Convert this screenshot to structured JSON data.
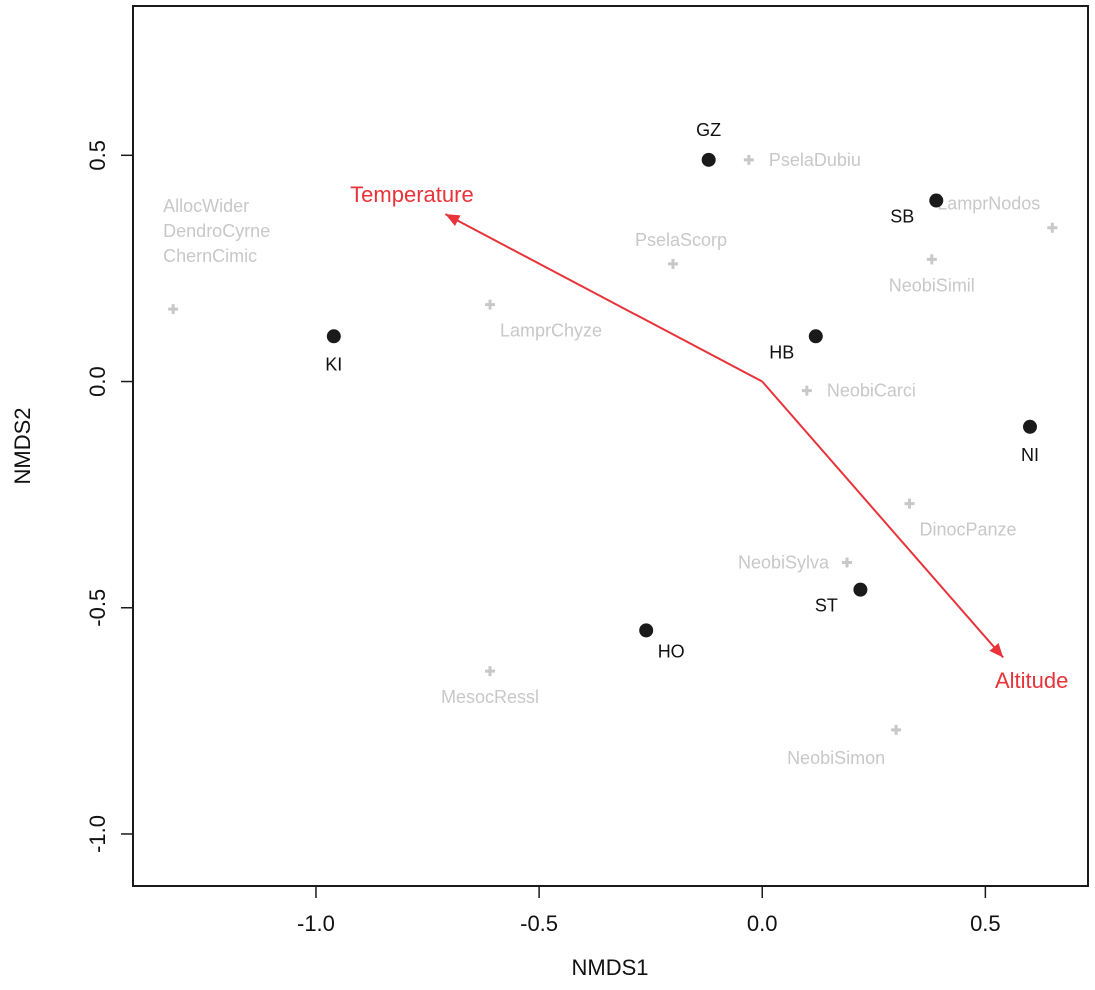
{
  "chart_data": {
    "type": "scatter",
    "title": "",
    "xlabel": "NMDS1",
    "ylabel": "NMDS2",
    "xlim": [
      -1.41,
      0.73
    ],
    "ylim": [
      -1.115,
      0.83
    ],
    "x_ticks": [
      "-1.0",
      "-0.5",
      "0.0",
      "0.5"
    ],
    "x_tick_values": [
      -1.0,
      -0.5,
      0.0,
      0.5
    ],
    "y_ticks": [
      "-1.0",
      "-0.5",
      "0.0",
      "0.5"
    ],
    "y_tick_values": [
      -1.0,
      -0.5,
      0.0,
      0.5
    ],
    "grid": false,
    "colors": {
      "sites": "#1a1a1a",
      "species": "#c8c8c8",
      "vectors": "#e8333a"
    },
    "sites": [
      {
        "label": "GZ",
        "x": -0.12,
        "y": 0.49,
        "label_pos": "above"
      },
      {
        "label": "SB",
        "x": 0.39,
        "y": 0.4,
        "label_pos": "below-left"
      },
      {
        "label": "KI",
        "x": -0.96,
        "y": 0.1,
        "label_pos": "below"
      },
      {
        "label": "HB",
        "x": 0.12,
        "y": 0.1,
        "label_pos": "below-left"
      },
      {
        "label": "NI",
        "x": 0.6,
        "y": -0.1,
        "label_pos": "below"
      },
      {
        "label": "ST",
        "x": 0.22,
        "y": -0.46,
        "label_pos": "below-left"
      },
      {
        "label": "HO",
        "x": -0.26,
        "y": -0.55,
        "label_pos": "below-right"
      }
    ],
    "species": [
      {
        "label": "PselaDubiu",
        "x": -0.03,
        "y": 0.49,
        "label_pos": "right"
      },
      {
        "label": "LamprNodos",
        "x": 0.65,
        "y": 0.34,
        "label_pos": "above-left"
      },
      {
        "label": "NeobiSimil",
        "x": 0.38,
        "y": 0.27,
        "label_pos": "below"
      },
      {
        "label": "PselaScorp",
        "x": -0.2,
        "y": 0.26,
        "label_pos": "above"
      },
      {
        "label": "AllocWider",
        "x": -1.32,
        "y": 0.16,
        "label_pos": "stack-1"
      },
      {
        "label": "DendroCyrne",
        "x": -1.32,
        "y": 0.16,
        "label_pos": "stack-2"
      },
      {
        "label": "ChernCimic",
        "x": -1.32,
        "y": 0.16,
        "label_pos": "stack-3"
      },
      {
        "label": "LamprChyze",
        "x": -0.61,
        "y": 0.17,
        "label_pos": "below-right"
      },
      {
        "label": "NeobiCarci",
        "x": 0.1,
        "y": -0.02,
        "label_pos": "right"
      },
      {
        "label": "DinocPanze",
        "x": 0.33,
        "y": -0.27,
        "label_pos": "below-right"
      },
      {
        "label": "NeobiSylva",
        "x": 0.19,
        "y": -0.4,
        "label_pos": "left"
      },
      {
        "label": "MesocRessl",
        "x": -0.61,
        "y": -0.64,
        "label_pos": "below"
      },
      {
        "label": "NeobiSimon",
        "x": 0.3,
        "y": -0.77,
        "label_pos": "below-left"
      }
    ],
    "vectors": [
      {
        "label": "Temperature",
        "x": -0.71,
        "y": 0.37
      },
      {
        "label": "Altitude",
        "x": 0.54,
        "y": -0.61
      }
    ]
  }
}
